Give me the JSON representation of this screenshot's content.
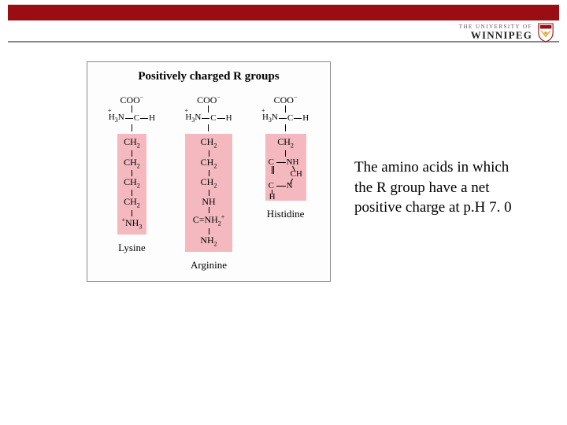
{
  "colors": {
    "header": "#9a0d12",
    "rbox": "#f4b9bf",
    "border": "#888888"
  },
  "logo": {
    "line1": "THE UNIVERSITY OF",
    "line2": "WINNIPEG"
  },
  "figure": {
    "title": "Positively charged R groups",
    "amino_acids": [
      {
        "name": "Lysine",
        "r_groups": [
          "CH₂",
          "CH₂",
          "CH₂",
          "CH₂",
          "⁺NH₃"
        ]
      },
      {
        "name": "Arginine",
        "r_groups": [
          "CH₂",
          "CH₂",
          "CH₂",
          "NH",
          "C=NH₂⁺",
          "NH₂"
        ]
      },
      {
        "name": "Histidine",
        "r_groups_top": [
          "CH₂"
        ],
        "ring": {
          "atoms": [
            "C—NH",
            "CH",
            "C—N",
            "H"
          ]
        }
      }
    ]
  },
  "caption": "The amino acids in which the R group have a net positive charge at p.H 7. 0",
  "backbone": {
    "coo": "COO⁻",
    "left": "H₃N",
    "center": "C",
    "right": "H",
    "plus": "+"
  }
}
